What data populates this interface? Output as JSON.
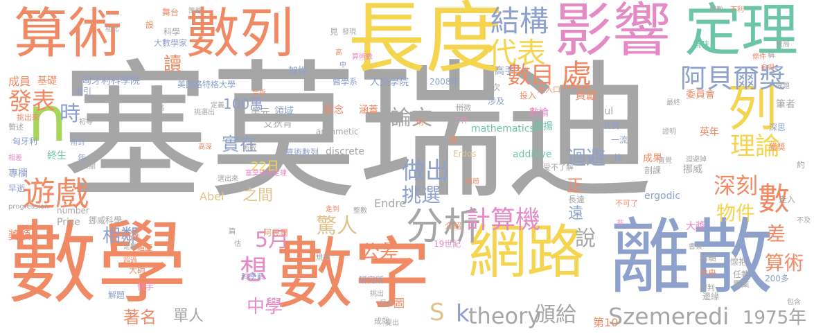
{
  "palette": {
    "gray": "#a6a6a6",
    "orange": "#f08a64",
    "yellow": "#f5d44f",
    "blue": "#8ea0cc",
    "green": "#6bc5a6",
    "pink": "#e48ac5",
    "lime": "#a8d65a",
    "tan": "#dfc38d"
  },
  "words": [
    {
      "text": "塞莫瑞迪",
      "color": "gray"
    },
    {
      "text": "數學",
      "color": "orange"
    },
    {
      "text": "數字",
      "color": "orange"
    },
    {
      "text": "離散",
      "color": "blue"
    },
    {
      "text": "長度",
      "color": "yellow"
    },
    {
      "text": "算術",
      "color": "orange"
    },
    {
      "text": "數列",
      "color": "orange"
    },
    {
      "text": "影響",
      "color": "pink"
    },
    {
      "text": "定理",
      "color": "green"
    },
    {
      "text": "網路",
      "color": "yellow"
    },
    {
      "text": "n",
      "color": "lime"
    },
    {
      "text": "列",
      "color": "yellow"
    },
    {
      "text": "結構",
      "color": "blue"
    },
    {
      "text": "代表",
      "color": "yellow"
    },
    {
      "text": "阿貝爾獎",
      "color": "blue"
    },
    {
      "text": "遊戲",
      "color": "orange"
    },
    {
      "text": "分析",
      "color": "gray"
    },
    {
      "text": "數目",
      "color": "orange"
    },
    {
      "text": "理論",
      "color": "yellow"
    },
    {
      "text": "計算機",
      "color": "pink"
    },
    {
      "text": "驚人",
      "color": "tan"
    },
    {
      "text": "Szemeredi",
      "color": "gray"
    },
    {
      "text": "theory",
      "color": "gray"
    },
    {
      "text": "S",
      "color": "tan"
    },
    {
      "text": "k",
      "color": "blue"
    },
    {
      "text": "頒給",
      "color": "gray"
    },
    {
      "text": "1975年",
      "color": "gray"
    },
    {
      "text": "做出",
      "color": "blue"
    },
    {
      "text": "挑選",
      "color": "blue"
    },
    {
      "text": "論文",
      "color": "gray"
    },
    {
      "text": "實在",
      "color": "blue"
    },
    {
      "text": "深刻",
      "color": "orange"
    },
    {
      "text": "處",
      "color": "orange"
    },
    {
      "text": "迴避",
      "color": "blue"
    },
    {
      "text": "物件",
      "color": "yellow"
    },
    {
      "text": "數",
      "color": "orange"
    },
    {
      "text": "差",
      "color": "orange"
    },
    {
      "text": "算術",
      "color": "orange"
    },
    {
      "text": "說",
      "color": "gray"
    },
    {
      "text": "公差",
      "color": "orange"
    },
    {
      "text": "5月",
      "color": "pink"
    },
    {
      "text": "想",
      "color": "pink"
    },
    {
      "text": "相鄰",
      "color": "blue"
    },
    {
      "text": "中學",
      "color": "pink"
    },
    {
      "text": "著名",
      "color": "orange"
    },
    {
      "text": "單人",
      "color": "gray"
    },
    {
      "text": "第10",
      "color": "orange"
    },
    {
      "text": "發表",
      "color": "orange"
    },
    {
      "text": "時",
      "color": "blue"
    },
    {
      "text": "讀",
      "color": "orange"
    },
    {
      "text": "100萬",
      "color": "blue"
    },
    {
      "text": "22日",
      "color": "yellow"
    },
    {
      "text": "之間",
      "color": "tan"
    },
    {
      "text": "遠",
      "color": "blue"
    },
    {
      "text": "正",
      "color": "orange"
    },
    {
      "text": "mathematics",
      "color": "green"
    },
    {
      "text": "arithmetic",
      "color": "gray"
    },
    {
      "text": "discrete",
      "color": "gray"
    },
    {
      "text": "additive",
      "color": "green"
    },
    {
      "text": "ergodic",
      "color": "blue"
    },
    {
      "text": "Endre",
      "color": "gray"
    },
    {
      "text": "Abel",
      "color": "tan"
    },
    {
      "text": "Prize",
      "color": "gray"
    },
    {
      "text": "number",
      "color": "gray"
    },
    {
      "text": "progression",
      "color": "gray"
    },
    {
      "text": "Paul",
      "color": "gray"
    },
    {
      "text": "Erdos",
      "color": "tan"
    },
    {
      "text": "人文學院",
      "color": "blue"
    },
    {
      "text": "美國路特格大學",
      "color": "blue"
    },
    {
      "text": "匈牙利科學院",
      "color": "blue"
    },
    {
      "text": "大數學家",
      "color": "blue"
    },
    {
      "text": "研究所",
      "color": "blue"
    },
    {
      "text": "醫學系",
      "color": "blue"
    },
    {
      "text": "紀念",
      "color": "orange"
    },
    {
      "text": "領域",
      "color": "blue"
    },
    {
      "text": "美元",
      "color": "gray"
    },
    {
      "text": "艾狄肯",
      "color": "gray"
    },
    {
      "text": "涵蓋",
      "color": "orange"
    },
    {
      "text": "獎額",
      "color": "orange"
    },
    {
      "text": "挪威科學",
      "color": "gray"
    },
    {
      "text": "19世紀",
      "color": "pink"
    },
    {
      "text": "2008年",
      "color": "blue"
    },
    {
      "text": "成員",
      "color": "orange"
    },
    {
      "text": "基礎",
      "color": "orange"
    },
    {
      "text": "終生",
      "color": "green"
    },
    {
      "text": "專欄",
      "color": "blue"
    },
    {
      "text": "早逝",
      "color": "blue"
    },
    {
      "text": "加性",
      "color": "blue"
    },
    {
      "text": "高手",
      "color": "blue"
    },
    {
      "text": "委員會",
      "color": "orange"
    },
    {
      "text": "貢獻",
      "color": "orange"
    },
    {
      "text": "讚揚",
      "color": "green"
    },
    {
      "text": "數論",
      "color": "pink"
    },
    {
      "text": "投入",
      "color": "orange"
    },
    {
      "text": "涉及",
      "color": "blue"
    },
    {
      "text": "英年",
      "color": "orange"
    },
    {
      "text": "獲獎",
      "color": "orange"
    },
    {
      "text": "挪威",
      "color": "gray"
    },
    {
      "text": "剖課",
      "color": "gray"
    },
    {
      "text": "成果",
      "color": "orange"
    },
    {
      "text": "一流",
      "color": "blue"
    },
    {
      "text": "長遠",
      "color": "gray"
    },
    {
      "text": "受不了解",
      "color": "gray"
    },
    {
      "text": "不可了",
      "color": "orange"
    },
    {
      "text": "大獎",
      "color": "pink"
    },
    {
      "text": "懷抱",
      "color": "gray"
    },
    {
      "text": "任教",
      "color": "gray"
    },
    {
      "text": "畢業",
      "color": "gray"
    },
    {
      "text": "評判",
      "color": "gray"
    },
    {
      "text": "邊緣",
      "color": "gray"
    },
    {
      "text": "中央",
      "color": "orange"
    },
    {
      "text": "200多",
      "color": "blue"
    },
    {
      "text": "走入",
      "color": "gray"
    },
    {
      "text": "深思",
      "color": "blue"
    },
    {
      "text": "筆者",
      "color": "gray"
    },
    {
      "text": "約",
      "color": "gray"
    },
    {
      "text": "氣味",
      "color": "green"
    },
    {
      "text": "不利",
      "color": "orange"
    },
    {
      "text": "總數",
      "color": "gray"
    },
    {
      "text": "策略",
      "color": "gray"
    },
    {
      "text": "舞台",
      "color": "orange"
    },
    {
      "text": "發現",
      "color": "gray"
    },
    {
      "text": "見",
      "color": "gray"
    },
    {
      "text": "科學",
      "color": "gray"
    },
    {
      "text": "導引",
      "color": "blue"
    },
    {
      "text": "匈牙利",
      "color": "blue"
    },
    {
      "text": "相比",
      "color": "gray"
    },
    {
      "text": "設",
      "color": "orange"
    },
    {
      "text": "算術數",
      "color": "pink"
    },
    {
      "text": "號",
      "color": "orange"
    },
    {
      "text": "工作",
      "color": "pink"
    },
    {
      "text": "稍微",
      "color": "gray"
    },
    {
      "text": "均",
      "color": "orange"
    },
    {
      "text": "帶",
      "color": "gray"
    },
    {
      "text": "次",
      "color": "gray"
    },
    {
      "text": "科學系",
      "color": "blue"
    },
    {
      "text": "大師",
      "color": "orange"
    },
    {
      "text": "解題",
      "color": "blue"
    },
    {
      "text": "快手",
      "color": "pink"
    },
    {
      "text": "圖",
      "color": "orange"
    },
    {
      "text": "介紹",
      "color": "orange"
    },
    {
      "text": "成就",
      "color": "gray"
    },
    {
      "text": "最多",
      "color": "gray"
    },
    {
      "text": "挑出",
      "color": "gray"
    },
    {
      "text": "年",
      "color": "blue"
    },
    {
      "text": "用到",
      "color": "blue"
    },
    {
      "text": "無關",
      "color": "gray"
    },
    {
      "text": "周",
      "color": "orange"
    },
    {
      "text": "阿貝爾",
      "color": "orange"
    },
    {
      "text": "塞莫瑞迪定理",
      "color": "pink"
    },
    {
      "text": "選出來",
      "color": "gray"
    },
    {
      "text": "挑選出",
      "color": "gray"
    },
    {
      "text": "定義",
      "color": "gray"
    },
    {
      "text": "巧妙",
      "color": "orange"
    },
    {
      "text": "超過",
      "color": "orange"
    },
    {
      "text": "遍歷",
      "color": "orange"
    },
    {
      "text": "挑出來",
      "color": "orange"
    },
    {
      "text": "成名",
      "color": "gray"
    },
    {
      "text": "告訴",
      "color": "orange"
    },
    {
      "text": "初等",
      "color": "gray"
    },
    {
      "text": "高深",
      "color": "orange"
    },
    {
      "text": "術數",
      "color": "gray"
    },
    {
      "text": "算術數列",
      "color": "blue"
    },
    {
      "text": "比例",
      "color": "blue"
    },
    {
      "text": "精髓",
      "color": "gray"
    },
    {
      "text": "包含",
      "color": "gray"
    },
    {
      "text": "不及",
      "color": "gray"
    },
    {
      "text": "多得",
      "color": "orange"
    },
    {
      "text": "稱",
      "color": "gray"
    },
    {
      "text": "條件",
      "color": "orange"
    },
    {
      "text": "敗局",
      "color": "gray"
    },
    {
      "text": "提出",
      "color": "gray"
    },
    {
      "text": "迴避掉",
      "color": "gray"
    },
    {
      "text": "證明",
      "color": "gray"
    },
    {
      "text": "直覺",
      "color": "gray"
    },
    {
      "text": "結局",
      "color": "orange"
    },
    {
      "text": "走到",
      "color": "orange"
    },
    {
      "text": "整數",
      "color": "gray"
    },
    {
      "text": "規律",
      "color": "gray"
    },
    {
      "text": "書簽",
      "color": "gray"
    },
    {
      "text": "定數",
      "color": "gray"
    },
    {
      "text": "最終",
      "color": "gray"
    },
    {
      "text": "高",
      "color": "orange"
    },
    {
      "text": "中",
      "color": "blue"
    },
    {
      "text": "贅述",
      "color": "gray"
    },
    {
      "text": "相差",
      "color": "pink"
    },
    {
      "text": "加入口",
      "color": "orange"
    },
    {
      "text": "快",
      "color": "blue"
    },
    {
      "text": "非",
      "color": "pink"
    },
    {
      "text": "問題",
      "color": "gray"
    },
    {
      "text": "篇",
      "color": "gray"
    },
    {
      "text": "估",
      "color": "gray"
    }
  ]
}
